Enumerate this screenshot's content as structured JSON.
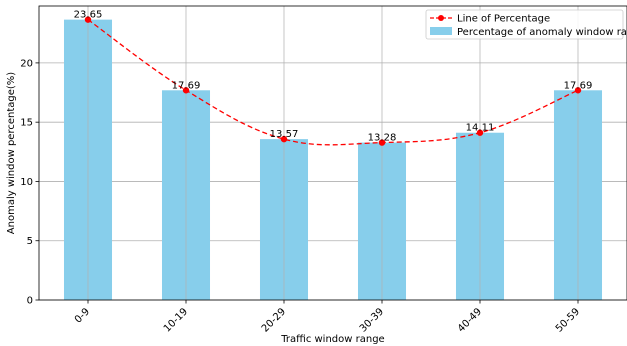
{
  "colors": {
    "bar": "#87ceeb",
    "line": "#ff0000",
    "grid": "#b0b0b0",
    "axis": "#000000"
  },
  "chart_data": {
    "type": "bar",
    "categories": [
      "0-9",
      "10-19",
      "20-29",
      "30-39",
      "40-49",
      "50-59"
    ],
    "series": [
      {
        "name": "Percentage of anomaly window range",
        "kind": "bar",
        "values": [
          23.65,
          17.69,
          13.57,
          13.28,
          14.11,
          17.69
        ]
      },
      {
        "name": "Line of Percentage",
        "kind": "line",
        "style": "dashed",
        "marker": "circle",
        "values": [
          23.65,
          17.69,
          13.57,
          13.28,
          14.11,
          17.69
        ]
      }
    ],
    "data_labels": [
      "23.65",
      "17.69",
      "13.57",
      "13.28",
      "14.11",
      "17.69"
    ],
    "xlabel": "Traffic window range",
    "ylabel": "Anomaly window percentage(%)",
    "ylim": [
      0,
      24.8
    ],
    "yticks": [
      0,
      5,
      10,
      15,
      20
    ],
    "xtick_rotation": 45,
    "grid": true,
    "legend_position": "top-right"
  }
}
